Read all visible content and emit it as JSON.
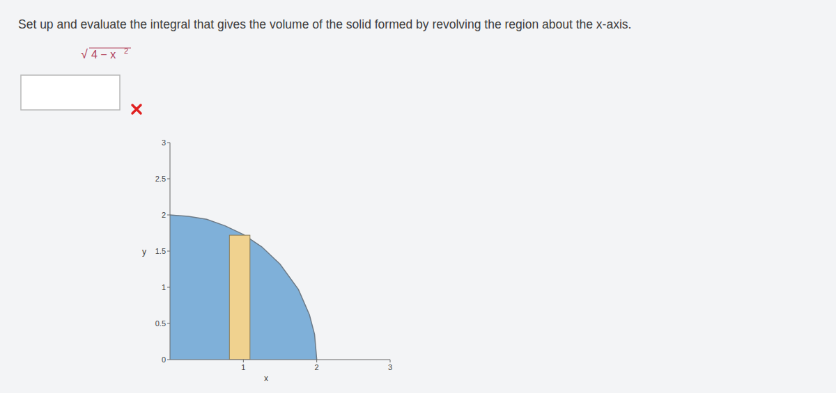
{
  "page": {
    "instruction": "Set up and evaluate the integral that gives the volume of the solid formed by revolving the region about the x-axis.",
    "function": {
      "radical": "√",
      "radicand": "4 − x",
      "exponent": "2"
    }
  },
  "chart_data": {
    "type": "area",
    "x_label": "x",
    "y_label": "y",
    "xlim": [
      0,
      3
    ],
    "ylim": [
      0,
      3
    ],
    "xticks": [
      1,
      2,
      3
    ],
    "yticks": [
      0,
      0.5,
      1,
      1.5,
      2,
      2.5,
      3
    ],
    "grid": false,
    "series": [
      {
        "type": "area",
        "color": "#7fb0d9",
        "x": [
          0,
          0.25,
          0.5,
          0.75,
          1,
          1.25,
          1.5,
          1.75,
          1.9,
          1.97,
          2
        ],
        "values": [
          2,
          1.98,
          1.94,
          1.85,
          1.73,
          1.56,
          1.32,
          0.97,
          0.62,
          0.35,
          0
        ]
      },
      {
        "type": "bar",
        "color": "#f0d28f",
        "bins": [
          0.81,
          1.09
        ],
        "values": [
          1.72
        ]
      }
    ]
  }
}
